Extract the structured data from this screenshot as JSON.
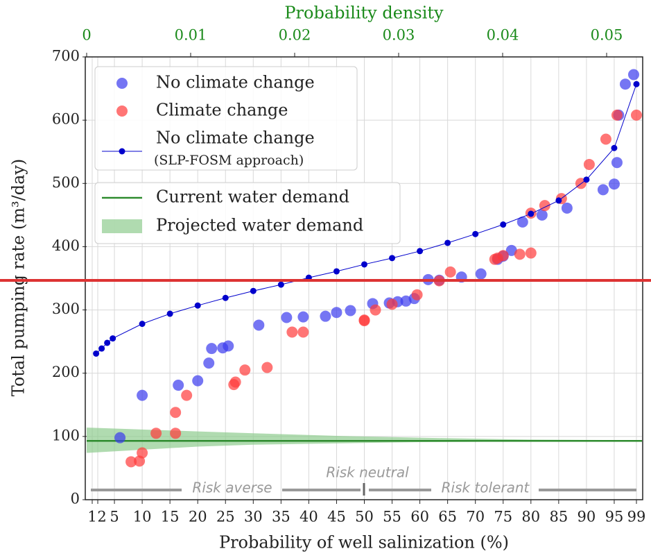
{
  "chart_data": {
    "type": "scatter",
    "x2_label": "Probability density",
    "xlabel": "Probability of well salinization (%)",
    "ylabel": "Total pumping rate (m³/day)",
    "xlim": [
      0,
      100
    ],
    "ylim": [
      0,
      700
    ],
    "x2lim": [
      0,
      0.0534
    ],
    "xticks": [
      1,
      2,
      5,
      10,
      15,
      20,
      25,
      30,
      35,
      40,
      45,
      50,
      55,
      60,
      65,
      70,
      75,
      80,
      85,
      90,
      95,
      99
    ],
    "yticks": [
      0,
      100,
      200,
      300,
      400,
      500,
      600,
      700
    ],
    "x2ticks": [
      0,
      0.01,
      0.02,
      0.03,
      0.04,
      0.05
    ],
    "grid": true,
    "series": [
      {
        "name": "No climate change",
        "type": "scatter",
        "color": "#3a3aee",
        "x": [
          6,
          10,
          16.5,
          20,
          22,
          22.5,
          24.5,
          25.5,
          31,
          36,
          39,
          43,
          45,
          47.5,
          51.5,
          54.5,
          56,
          57.5,
          59,
          61.5,
          63.5,
          67.5,
          71,
          74,
          75,
          76.5,
          78.5,
          82,
          86.5,
          93,
          95,
          95.5,
          95.8,
          97,
          98.5
        ],
        "values": [
          98,
          165,
          181,
          188,
          216,
          239,
          240,
          243,
          276,
          288,
          289,
          290,
          296,
          299,
          310,
          311,
          313,
          314,
          318,
          348,
          347,
          352,
          357,
          380,
          385,
          394,
          439,
          450,
          461,
          490,
          499,
          533,
          608,
          657,
          672
        ]
      },
      {
        "name": "Climate change",
        "type": "scatter",
        "color": "#ff3b3b",
        "x": [
          8,
          9.5,
          10,
          12.5,
          16,
          16,
          18,
          26.5,
          26.8,
          28.5,
          32.5,
          37,
          39,
          50,
          50,
          52,
          55,
          59.5,
          63.5,
          65.5,
          73.5,
          74,
          75,
          78,
          80,
          80,
          82.5,
          85.5,
          89,
          90.5,
          93.5,
          95.5,
          99
        ],
        "values": [
          60,
          61,
          74,
          105,
          105,
          138,
          165,
          182,
          186,
          205,
          209,
          265,
          265,
          283,
          284,
          300,
          309,
          324,
          346,
          360,
          380,
          382,
          386,
          388,
          390,
          453,
          465,
          476,
          500,
          530,
          570,
          608,
          608
        ]
      },
      {
        "name": "No climate change",
        "name_note": "(SLP-FOSM approach)",
        "type": "line",
        "color": "#0000cc",
        "x": [
          1.7,
          2.7,
          3.7,
          4.7,
          10,
          15,
          20,
          25,
          30,
          35,
          40,
          45,
          50,
          55,
          60,
          65,
          70,
          75,
          80,
          85,
          90,
          95,
          99
        ],
        "values": [
          231,
          239,
          248,
          255,
          278,
          294,
          307,
          319,
          330,
          340,
          351,
          361,
          372,
          382,
          393,
          406,
          420,
          435,
          452,
          473,
          506,
          556,
          657
        ]
      },
      {
        "name": "Current water demand",
        "type": "hline",
        "color": "#2e8b2e",
        "value": 93
      },
      {
        "name": "Projected water demand",
        "type": "band",
        "color": "#8fcc8f",
        "x": [
          0,
          10,
          20,
          30,
          45,
          60,
          80,
          100
        ],
        "upper": [
          114,
          111,
          108,
          105,
          101,
          98,
          95,
          94
        ],
        "lower": [
          74,
          79,
          84,
          87,
          89,
          91,
          92,
          93
        ]
      }
    ],
    "annotations": [
      "Risk averse",
      "Risk neutral",
      "Risk tolerant"
    ]
  }
}
